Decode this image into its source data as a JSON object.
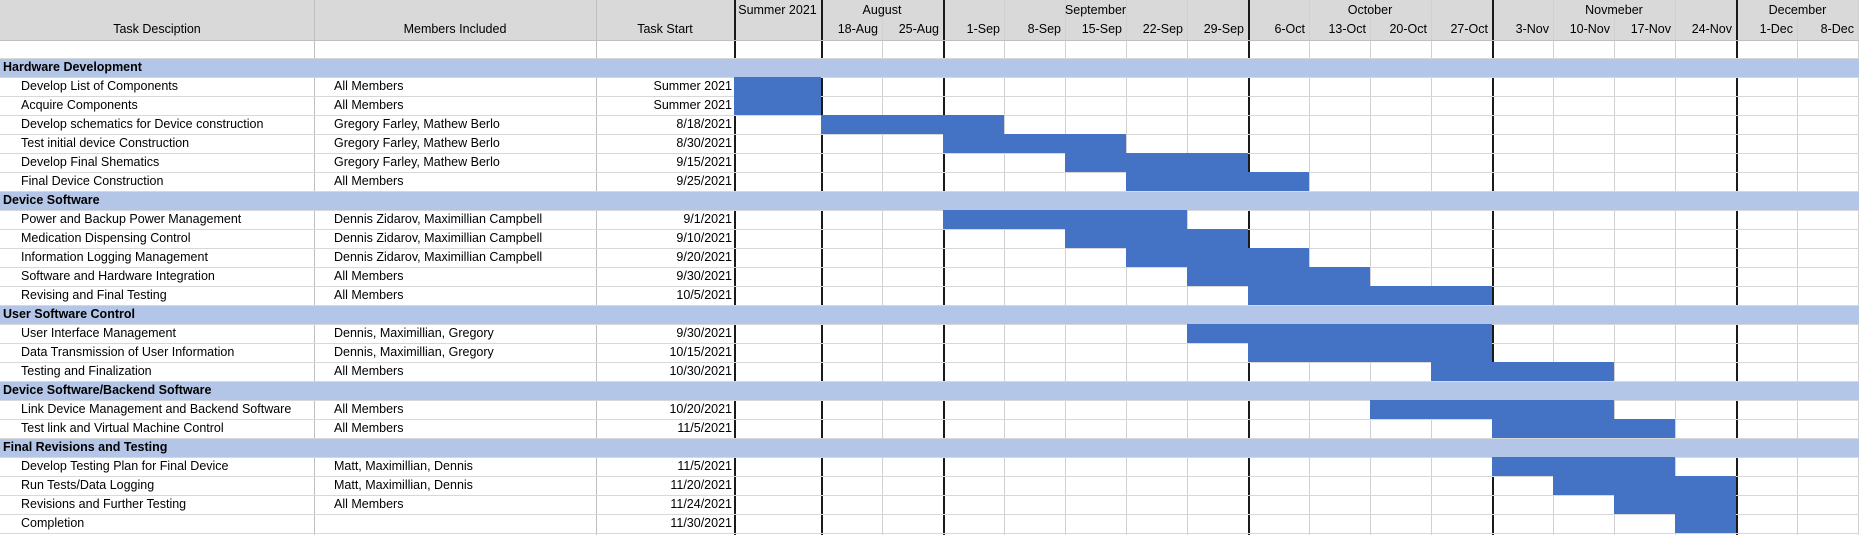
{
  "headers": {
    "task": "Task Desciption",
    "members": "Members Included",
    "start": "Task Start"
  },
  "months": [
    {
      "label": "Summer 2021",
      "span": [
        0,
        1
      ]
    },
    {
      "label": "August",
      "span": [
        1,
        3
      ]
    },
    {
      "label": "September",
      "span": [
        3,
        8
      ]
    },
    {
      "label": "October",
      "span": [
        8,
        12
      ]
    },
    {
      "label": "Novmeber",
      "span": [
        12,
        16
      ]
    },
    {
      "label": "December",
      "span": [
        16,
        18
      ]
    }
  ],
  "weeks": [
    "",
    "18-Aug",
    "25-Aug",
    "1-Sep",
    "8-Sep",
    "15-Sep",
    "22-Sep",
    "29-Sep",
    "6-Oct",
    "13-Oct",
    "20-Oct",
    "27-Oct",
    "3-Nov",
    "10-Nov",
    "17-Nov",
    "24-Nov",
    "1-Dec",
    "8-Dec"
  ],
  "month_boundaries": [
    1,
    3,
    8,
    12,
    16
  ],
  "rows": [
    {
      "type": "cat",
      "task": "Hardware Development"
    },
    {
      "type": "task",
      "task": "Develop List of Components",
      "members": "All Members",
      "start": "Summer 2021",
      "bar": [
        0,
        1
      ]
    },
    {
      "type": "task",
      "task": "Acquire Components",
      "members": "All Members",
      "start": "Summer 2021",
      "bar": [
        0,
        1
      ]
    },
    {
      "type": "task",
      "task": "Develop schematics for Device construction",
      "members": "Gregory Farley, Mathew Berlo",
      "start": "8/18/2021",
      "bar": [
        1,
        4
      ]
    },
    {
      "type": "task",
      "task": "Test initial device Construction",
      "members": "Gregory Farley, Mathew Berlo",
      "start": "8/30/2021",
      "bar": [
        3,
        6
      ]
    },
    {
      "type": "task",
      "task": "Develop Final Shematics",
      "members": "Gregory Farley, Mathew Berlo",
      "start": "9/15/2021",
      "bar": [
        5,
        8
      ]
    },
    {
      "type": "task",
      "task": "Final Device Construction",
      "members": "All Members",
      "start": "9/25/2021",
      "bar": [
        6,
        9
      ]
    },
    {
      "type": "cat",
      "task": "Device Software"
    },
    {
      "type": "task",
      "task": "Power and Backup Power Management",
      "members": "Dennis Zidarov, Maximillian Campbell",
      "start": "9/1/2021",
      "bar": [
        3,
        7
      ]
    },
    {
      "type": "task",
      "task": "Medication Dispensing Control",
      "members": "Dennis Zidarov, Maximillian Campbell",
      "start": "9/10/2021",
      "bar": [
        5,
        8
      ]
    },
    {
      "type": "task",
      "task": "Information Logging Management",
      "members": "Dennis Zidarov, Maximillian Campbell",
      "start": "9/20/2021",
      "bar": [
        6,
        9
      ]
    },
    {
      "type": "task",
      "task": "Software and Hardware Integration",
      "members": "All Members",
      "start": "9/30/2021",
      "bar": [
        7,
        10
      ]
    },
    {
      "type": "task",
      "task": "Revising and Final Testing",
      "members": "All Members",
      "start": "10/5/2021",
      "bar": [
        8,
        12
      ]
    },
    {
      "type": "cat",
      "task": "User Software Control"
    },
    {
      "type": "task",
      "task": "User Interface Management",
      "members": "Dennis, Maximillian, Gregory",
      "start": "9/30/2021",
      "bar": [
        7,
        12
      ]
    },
    {
      "type": "task",
      "task": "Data Transmission of User Information",
      "members": "Dennis, Maximillian, Gregory",
      "start": "10/15/2021",
      "bar": [
        8,
        12
      ]
    },
    {
      "type": "task",
      "task": "Testing and Finalization",
      "members": "All Members",
      "start": "10/30/2021",
      "bar": [
        11,
        14
      ]
    },
    {
      "type": "cat",
      "task": "Device Software/Backend Software"
    },
    {
      "type": "task",
      "task": "Link Device Management and Backend Software",
      "members": "All Members",
      "start": "10/20/2021",
      "bar": [
        10,
        14
      ]
    },
    {
      "type": "task",
      "task": "Test link and Virtual Machine Control",
      "members": "All Members",
      "start": "11/5/2021",
      "bar": [
        12,
        15
      ]
    },
    {
      "type": "cat",
      "task": "Final Revisions and Testing"
    },
    {
      "type": "task",
      "task": "Develop Testing Plan for Final Device",
      "members": "Matt, Maximillian, Dennis",
      "start": "11/5/2021",
      "bar": [
        12,
        15
      ]
    },
    {
      "type": "task",
      "task": "Run Tests/Data Logging",
      "members": "Matt, Maximillian, Dennis",
      "start": "11/20/2021",
      "bar": [
        13,
        16
      ]
    },
    {
      "type": "task",
      "task": "Revisions and Further Testing",
      "members": "All Members",
      "start": "11/24/2021",
      "bar": [
        14,
        16
      ]
    },
    {
      "type": "task",
      "task": "Completion",
      "members": "",
      "start": "11/30/2021",
      "bar": [
        15,
        16
      ]
    }
  ],
  "colors": {
    "header_fill": "#d9d9d9",
    "category_band": "#b4c6e7",
    "bar_fill": "#4472c4",
    "grid": "#d0d0d0",
    "month_divider": "#1a1a1a"
  }
}
